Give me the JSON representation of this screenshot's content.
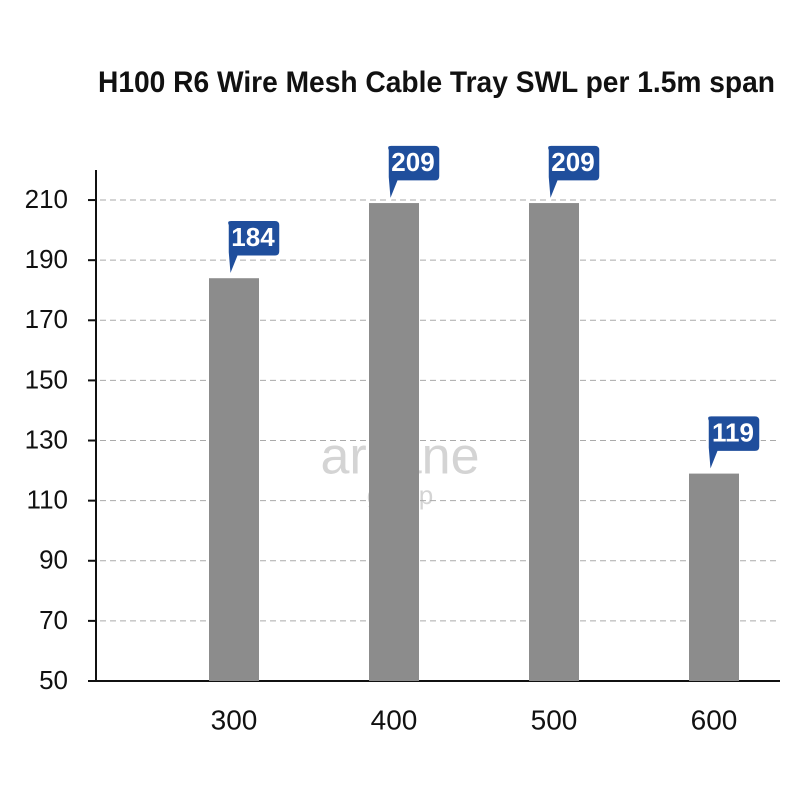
{
  "chart_data": {
    "type": "bar",
    "title": "H100 R6 Wire Mesh Cable Tray SWL per 1.5m span",
    "categories": [
      "300",
      "400",
      "500",
      "600"
    ],
    "values": [
      184,
      209,
      209,
      119
    ],
    "color": "#8c8c8c",
    "label_color": "#1f4e9c",
    "ylim": [
      50,
      220
    ],
    "yticks": [
      50,
      70,
      90,
      110,
      130,
      150,
      170,
      190,
      210
    ],
    "grid": true,
    "watermark": [
      "arcane",
      "group"
    ]
  }
}
